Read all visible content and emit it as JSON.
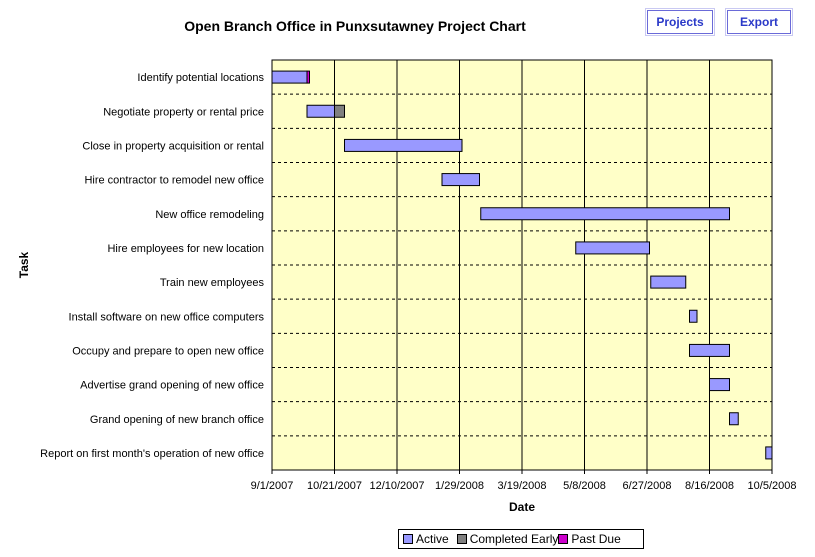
{
  "header": {
    "projects_label": "Projects",
    "export_label": "Export"
  },
  "colors": {
    "plot_bg": "#ffffc8",
    "active": "#9999ff",
    "completed_early": "#808080",
    "past_due": "#cc00cc"
  },
  "chart_data": {
    "type": "gantt",
    "title": "Open Branch Office in Punxsutawney Project Chart",
    "xlabel": "Date",
    "ylabel": "Task",
    "xlim": [
      "2007-09-01",
      "2008-10-05"
    ],
    "x_ticks": [
      "9/1/2007",
      "10/21/2007",
      "12/10/2007",
      "1/29/2008",
      "3/19/2008",
      "5/8/2008",
      "6/27/2008",
      "8/16/2008",
      "10/5/2008"
    ],
    "legend": [
      "Active",
      "Completed Early",
      "Past Due"
    ],
    "tasks": [
      {
        "name": "Identify potential locations",
        "start": "2007-09-01",
        "end": "2007-09-29",
        "completed_early_end": null,
        "past_due_end": "2007-10-01"
      },
      {
        "name": "Negotiate property or rental price",
        "start": "2007-09-29",
        "end": "2007-10-21",
        "completed_early_end": "2007-10-29",
        "past_due_end": null
      },
      {
        "name": "Close in property acquisition or rental",
        "start": "2007-10-29",
        "end": "2008-01-31",
        "completed_early_end": null,
        "past_due_end": null
      },
      {
        "name": "Hire contractor to remodel new office",
        "start": "2008-01-15",
        "end": "2008-02-14",
        "completed_early_end": null,
        "past_due_end": null
      },
      {
        "name": "New office remodeling",
        "start": "2008-02-15",
        "end": "2008-09-01",
        "completed_early_end": null,
        "past_due_end": null
      },
      {
        "name": "Hire employees for new location",
        "start": "2008-05-01",
        "end": "2008-06-29",
        "completed_early_end": null,
        "past_due_end": null
      },
      {
        "name": "Train new employees",
        "start": "2008-06-30",
        "end": "2008-07-28",
        "completed_early_end": null,
        "past_due_end": null
      },
      {
        "name": "Install software on new office computers",
        "start": "2008-07-31",
        "end": "2008-08-06",
        "completed_early_end": null,
        "past_due_end": null
      },
      {
        "name": "Occupy and prepare to open new office",
        "start": "2008-07-31",
        "end": "2008-09-01",
        "completed_early_end": null,
        "past_due_end": null
      },
      {
        "name": "Advertise grand opening of new office",
        "start": "2008-08-16",
        "end": "2008-09-01",
        "completed_early_end": null,
        "past_due_end": null
      },
      {
        "name": "Grand opening of new branch office",
        "start": "2008-09-01",
        "end": "2008-09-08",
        "completed_early_end": null,
        "past_due_end": null
      },
      {
        "name": "Report on first month's operation of new office",
        "start": "2008-09-30",
        "end": "2008-10-05",
        "completed_early_end": null,
        "past_due_end": null
      }
    ]
  }
}
